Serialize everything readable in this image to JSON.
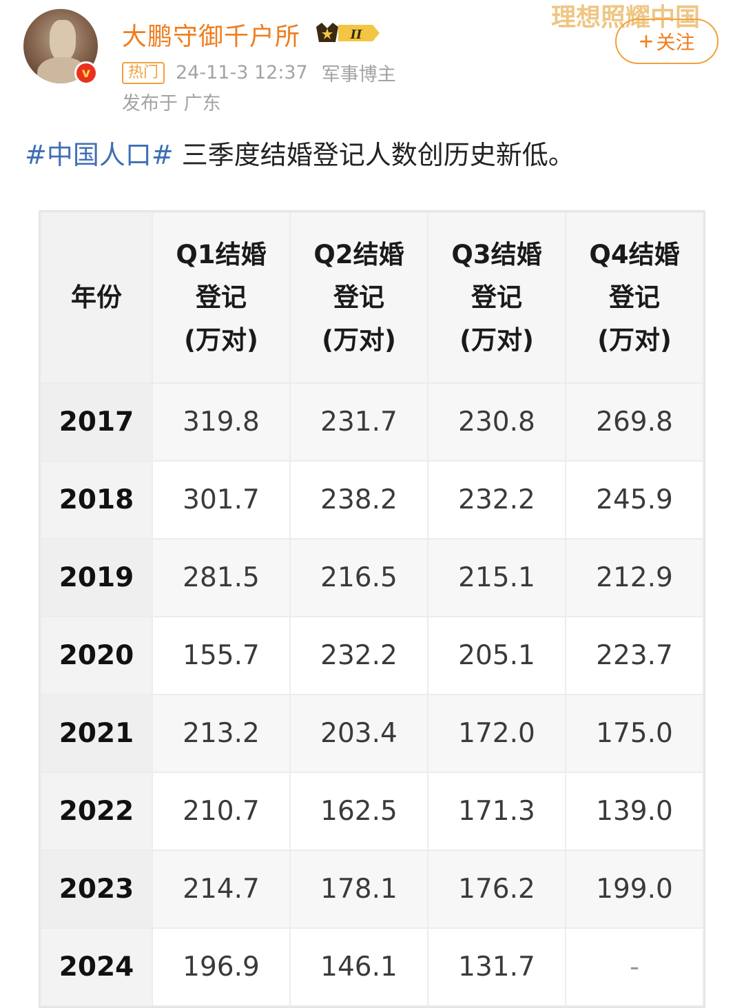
{
  "post": {
    "author": "大鹏守御千户所",
    "rank_badge": "II",
    "hot_tag": "热门",
    "time": "24-11-3 12:37",
    "author_category": "军事博主",
    "location": "发布于 广东",
    "watermark": "理想照耀中国",
    "follow_label": "关注",
    "verified_icon_text": "v",
    "hashtag": "#中国人口#",
    "text": " 三季度结婚登记人数创历史新低。"
  },
  "table": {
    "headers": [
      [
        "年份"
      ],
      [
        "Q1结婚",
        "登记",
        "(万对)"
      ],
      [
        "Q2结婚",
        "登记",
        "(万对)"
      ],
      [
        "Q3结婚",
        "登记",
        "(万对)"
      ],
      [
        "Q4结婚",
        "登记",
        "(万对)"
      ]
    ],
    "rows": [
      [
        "2017",
        "319.8",
        "231.7",
        "230.8",
        "269.8"
      ],
      [
        "2018",
        "301.7",
        "238.2",
        "232.2",
        "245.9"
      ],
      [
        "2019",
        "281.5",
        "216.5",
        "215.1",
        "212.9"
      ],
      [
        "2020",
        "155.7",
        "232.2",
        "205.1",
        "223.7"
      ],
      [
        "2021",
        "213.2",
        "203.4",
        "172.0",
        "175.0"
      ],
      [
        "2022",
        "210.7",
        "162.5",
        "171.3",
        "139.0"
      ],
      [
        "2023",
        "214.7",
        "178.1",
        "176.2",
        "199.0"
      ],
      [
        "2024",
        "196.9",
        "146.1",
        "131.7",
        "-"
      ]
    ]
  }
}
